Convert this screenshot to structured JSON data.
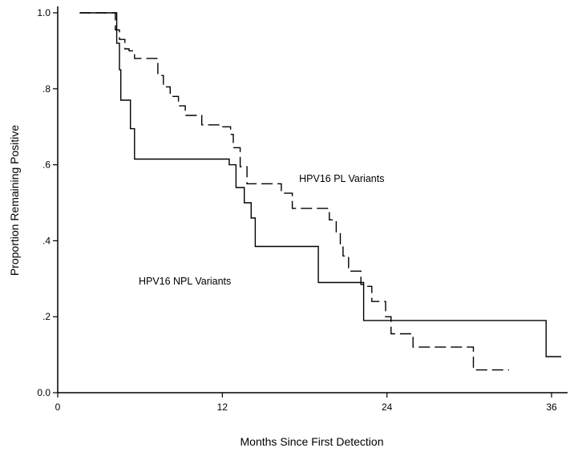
{
  "chart_data": {
    "type": "line",
    "title": "",
    "xlabel": "Months Since First Detection",
    "ylabel": "Proportion Remaining Positive",
    "xlim": [
      0,
      36
    ],
    "ylim": [
      0,
      1.0
    ],
    "xticks": [
      0,
      12,
      24,
      36
    ],
    "xtick_labels": [
      "0",
      "12",
      "24",
      "36"
    ],
    "yticks": [
      0,
      0.2,
      0.4,
      0.6,
      0.8,
      1.0
    ],
    "ytick_labels": [
      "0.0",
      ".2",
      ".4",
      ".6",
      ".8",
      "1.0"
    ],
    "grid": false,
    "step": true,
    "series": [
      {
        "name": "HPV16 NPL Variants",
        "style": "solid",
        "x": [
          1.6,
          4.3,
          4.5,
          4.6,
          5.3,
          5.6,
          12.5,
          13.0,
          13.6,
          14.1,
          14.4,
          19.0,
          22.3,
          35.6,
          36.7
        ],
        "y": [
          1.0,
          0.92,
          0.85,
          0.77,
          0.695,
          0.615,
          0.6,
          0.54,
          0.5,
          0.46,
          0.385,
          0.29,
          0.19,
          0.095,
          0.095
        ]
      },
      {
        "name": "HPV16 PL Variants",
        "style": "dashed",
        "x": [
          1.6,
          4.2,
          4.5,
          4.9,
          5.2,
          5.6,
          6.2,
          7.3,
          7.7,
          8.2,
          8.8,
          9.3,
          10.5,
          11.8,
          12.6,
          12.8,
          13.3,
          13.8,
          16.3,
          17.1,
          19.8,
          20.3,
          20.6,
          20.8,
          21.2,
          22.1,
          22.3,
          22.9,
          23.9,
          24.3,
          25.9,
          30.3,
          32.9
        ],
        "y": [
          1.0,
          0.955,
          0.93,
          0.905,
          0.9,
          0.88,
          0.88,
          0.835,
          0.805,
          0.78,
          0.755,
          0.73,
          0.705,
          0.7,
          0.68,
          0.645,
          0.595,
          0.55,
          0.525,
          0.485,
          0.455,
          0.42,
          0.385,
          0.36,
          0.32,
          0.285,
          0.28,
          0.24,
          0.2,
          0.155,
          0.12,
          0.06,
          0.06
        ]
      }
    ],
    "annotations": [
      {
        "text": "HPV16 PL Variants",
        "x": 17.6,
        "y": 0.555
      },
      {
        "text": "HPV16 NPL Variants",
        "x": 5.9,
        "y": 0.285
      }
    ]
  }
}
